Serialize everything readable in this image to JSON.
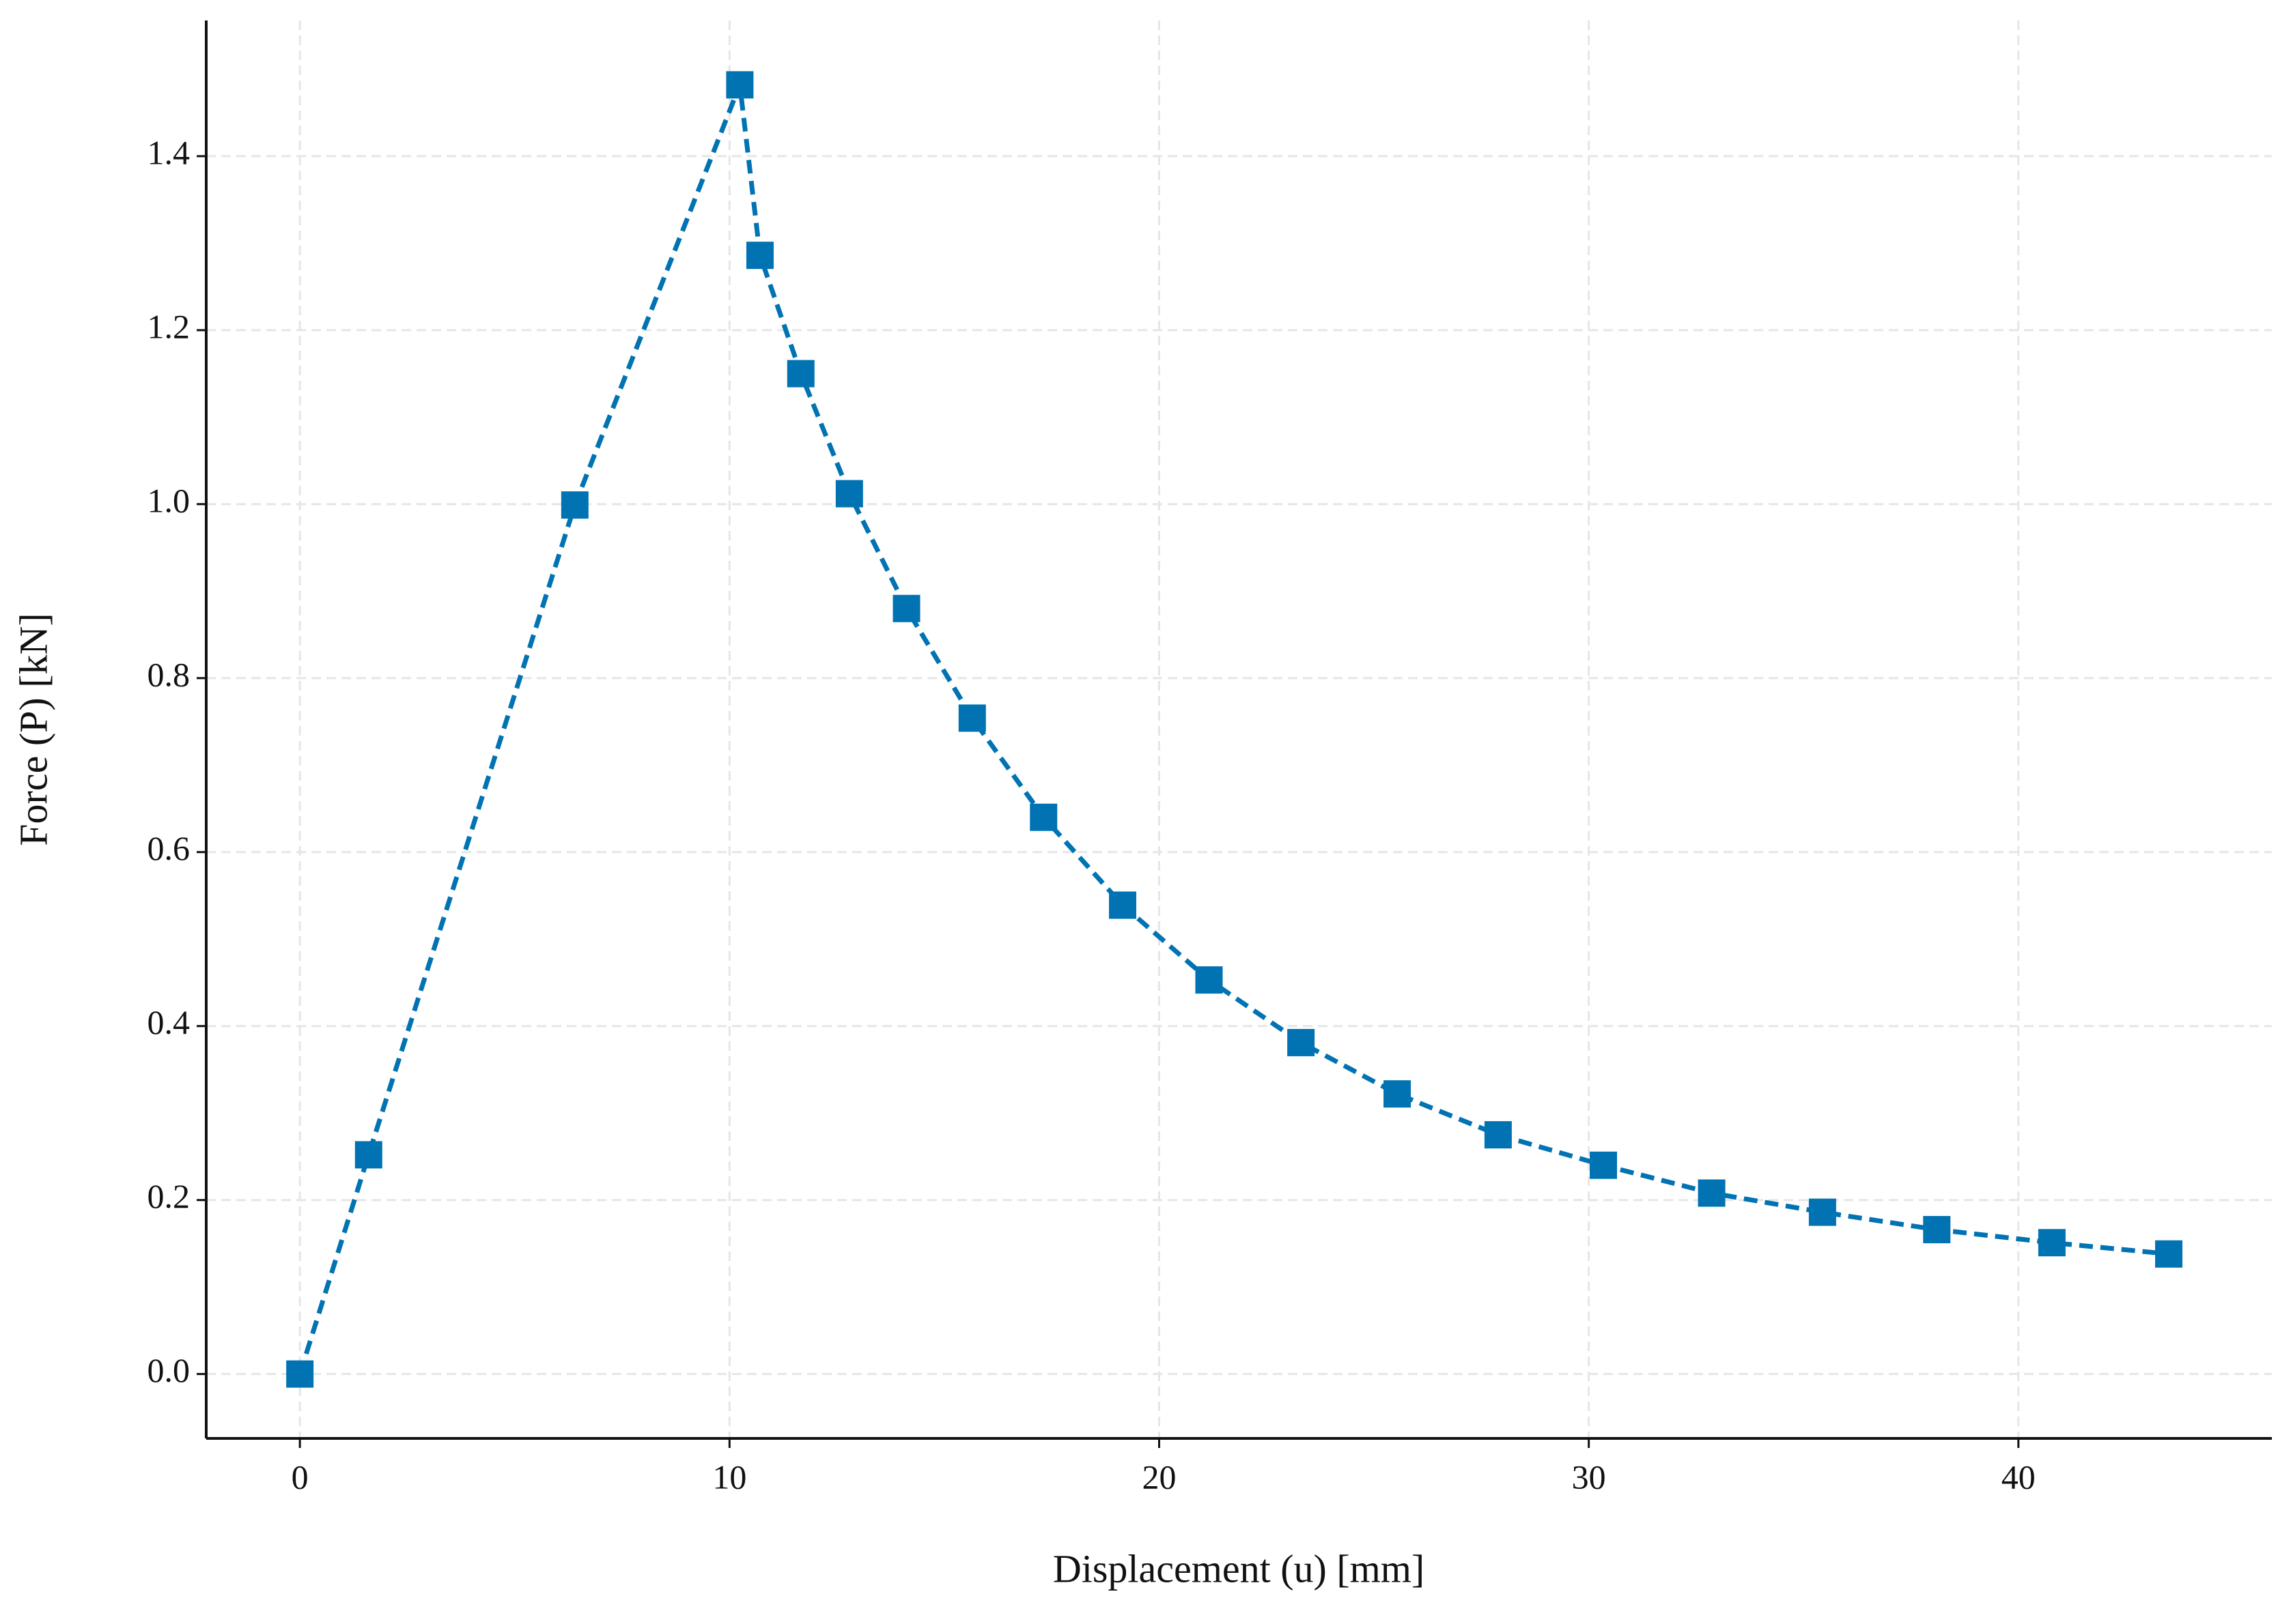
{
  "chart_data": {
    "type": "line",
    "x_label": "Displacement (u) [mm]",
    "y_label": "Force (P) [kN]",
    "series": [
      {
        "color": "#0173b2",
        "x": [
          0,
          1.6,
          6.4,
          10.24,
          10.71,
          11.66,
          12.79,
          14.12,
          15.65,
          17.31,
          19.15,
          21.16,
          23.3,
          25.54,
          27.89,
          30.34,
          32.86,
          35.44,
          38.1,
          40.78,
          43.5
        ],
        "values": [
          0,
          0.252,
          0.999,
          1.482,
          1.286,
          1.15,
          1.012,
          0.88,
          0.754,
          0.64,
          0.539,
          0.453,
          0.381,
          0.322,
          0.275,
          0.24,
          0.208,
          0.186,
          0.166,
          0.151,
          0.138
        ]
      }
    ],
    "xlim": [
      -2.18,
      45.9
    ],
    "ylim": [
      -0.074,
      1.556
    ],
    "xticks": [
      0,
      10,
      20,
      30,
      40
    ],
    "yticks": [
      {
        "value": 0,
        "label": "0.0"
      },
      0.2,
      0.4,
      0.6,
      0.8,
      {
        "value": 1,
        "label": "1.0"
      },
      1.2,
      1.4
    ],
    "grid": true
  }
}
